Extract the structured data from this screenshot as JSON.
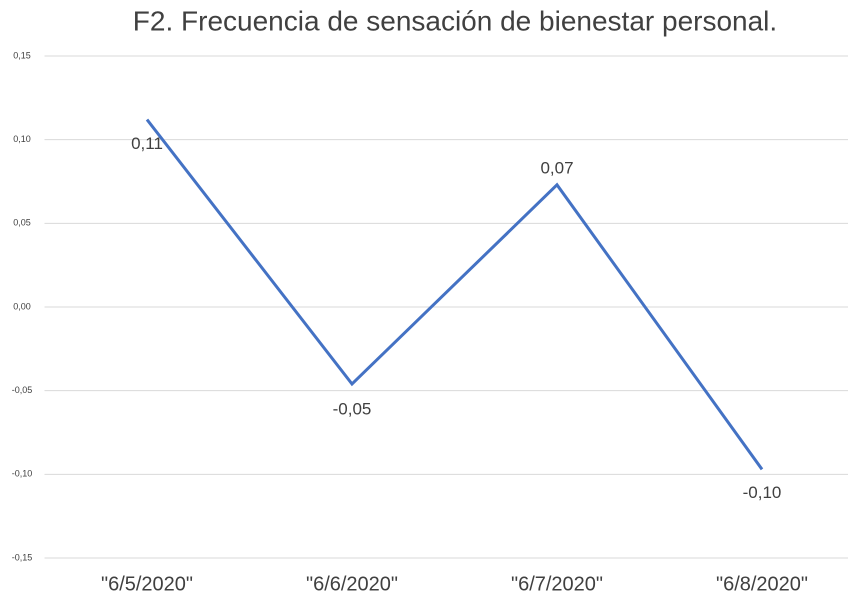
{
  "chart_data": {
    "type": "line",
    "title": "F2. Frecuencia de sensación de bienestar personal.",
    "categories": [
      "\"6/5/2020\"",
      "\"6/6/2020\"",
      "\"6/7/2020\"",
      "\"6/8/2020\""
    ],
    "series": [
      {
        "name": "F2",
        "color": "#4472c4",
        "values": [
          0.112,
          -0.046,
          0.073,
          -0.097
        ],
        "value_labels": [
          "0,11",
          "-0,05",
          "0,07",
          "-0,10"
        ]
      }
    ],
    "ylim": [
      -0.15,
      0.15
    ],
    "yticks": [
      {
        "value": -0.15,
        "label": "-0,15"
      },
      {
        "value": -0.1,
        "label": "-0,10"
      },
      {
        "value": -0.05,
        "label": "-0,05"
      },
      {
        "value": 0,
        "label": "0,00"
      },
      {
        "value": 0.05,
        "label": "0,05"
      },
      {
        "value": 0.1,
        "label": "0,10"
      },
      {
        "value": 0.15,
        "label": "0,15"
      }
    ],
    "grid": true,
    "legend": false
  }
}
